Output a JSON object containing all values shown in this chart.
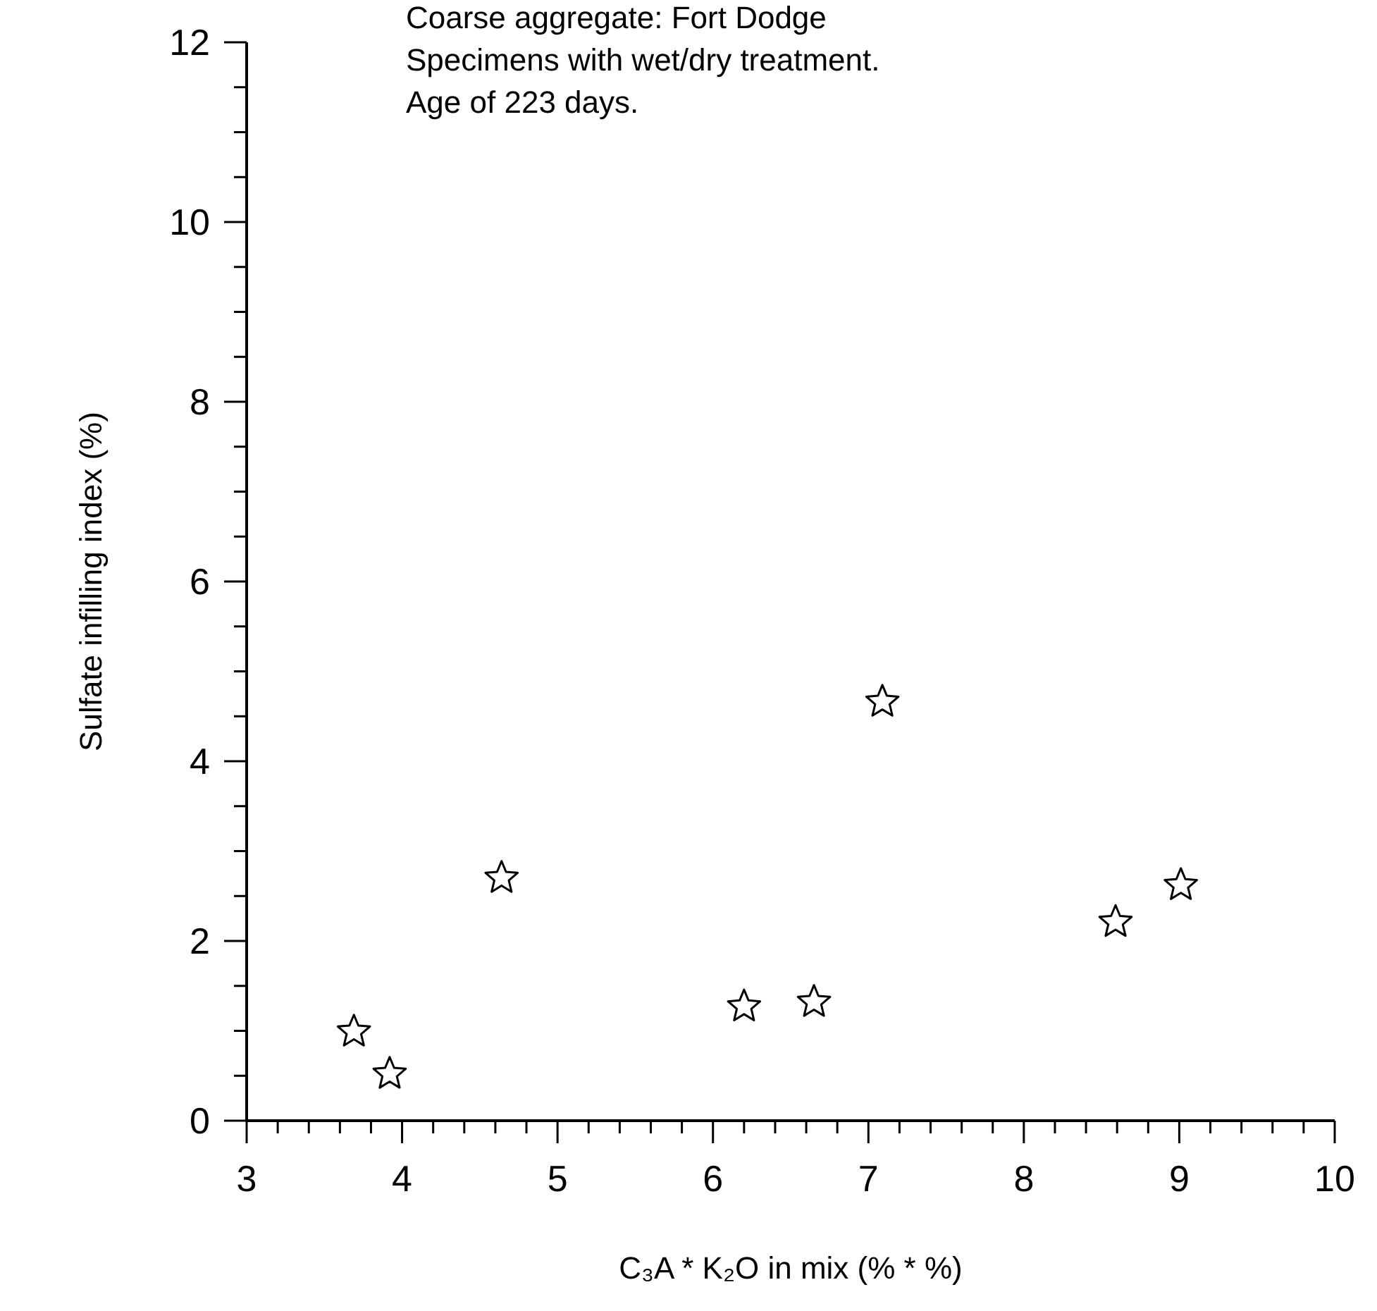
{
  "chart_data": {
    "type": "scatter",
    "xlabel": "C₃A * K₂O in mix (% * %)",
    "ylabel": "Sulfate infilling index (%)",
    "annotations": [
      "Coarse aggregate: Fort Dodge",
      "Specimens with wet/dry treatment.",
      "Age of 223 days."
    ],
    "x": [
      3.69,
      3.92,
      4.64,
      6.2,
      6.65,
      7.09,
      8.59,
      9.01
    ],
    "series": [
      {
        "color": "#000000",
        "values": [
          0.99,
          0.52,
          2.7,
          1.27,
          1.32,
          4.66,
          2.21,
          2.62
        ]
      }
    ],
    "marker": "star",
    "grid": false,
    "xlim": [
      3,
      10
    ],
    "ylim": [
      0,
      12
    ],
    "xticks": [
      3,
      {
        "value": 3.2,
        "label": null
      },
      {
        "value": 3.4,
        "label": null
      },
      {
        "value": 3.6,
        "label": null
      },
      {
        "value": 3.8,
        "label": null
      },
      4,
      {
        "value": 4.2,
        "label": null
      },
      {
        "value": 4.4,
        "label": null
      },
      {
        "value": 4.6,
        "label": null
      },
      {
        "value": 4.8,
        "label": null
      },
      5,
      {
        "value": 5.2,
        "label": null
      },
      {
        "value": 5.4,
        "label": null
      },
      {
        "value": 5.6,
        "label": null
      },
      {
        "value": 5.8,
        "label": null
      },
      6,
      {
        "value": 6.2,
        "label": null
      },
      {
        "value": 6.4,
        "label": null
      },
      {
        "value": 6.6,
        "label": null
      },
      {
        "value": 6.8,
        "label": null
      },
      7,
      {
        "value": 7.2,
        "label": null
      },
      {
        "value": 7.4,
        "label": null
      },
      {
        "value": 7.6,
        "label": null
      },
      {
        "value": 7.8,
        "label": null
      },
      8,
      {
        "value": 8.2,
        "label": null
      },
      {
        "value": 8.4,
        "label": null
      },
      {
        "value": 8.6,
        "label": null
      },
      {
        "value": 8.8,
        "label": null
      },
      9,
      {
        "value": 9.2,
        "label": null
      },
      {
        "value": 9.4,
        "label": null
      },
      {
        "value": 9.6,
        "label": null
      },
      {
        "value": 9.8,
        "label": null
      },
      10
    ],
    "yticks": [
      0,
      {
        "value": 0.5,
        "label": null
      },
      {
        "value": 1,
        "label": null
      },
      {
        "value": 1.5,
        "label": null
      },
      2,
      {
        "value": 2.5,
        "label": null
      },
      {
        "value": 3,
        "label": null
      },
      {
        "value": 3.5,
        "label": null
      },
      4,
      {
        "value": 4.5,
        "label": null
      },
      {
        "value": 5,
        "label": null
      },
      {
        "value": 5.5,
        "label": null
      },
      6,
      {
        "value": 6.5,
        "label": null
      },
      {
        "value": 7,
        "label": null
      },
      {
        "value": 7.5,
        "label": null
      },
      8,
      {
        "value": 8.5,
        "label": null
      },
      {
        "value": 9,
        "label": null
      },
      {
        "value": 9.5,
        "label": null
      },
      10,
      {
        "value": 10.5,
        "label": null
      },
      {
        "value": 11,
        "label": null
      },
      {
        "value": 11.5,
        "label": null
      },
      12
    ]
  }
}
